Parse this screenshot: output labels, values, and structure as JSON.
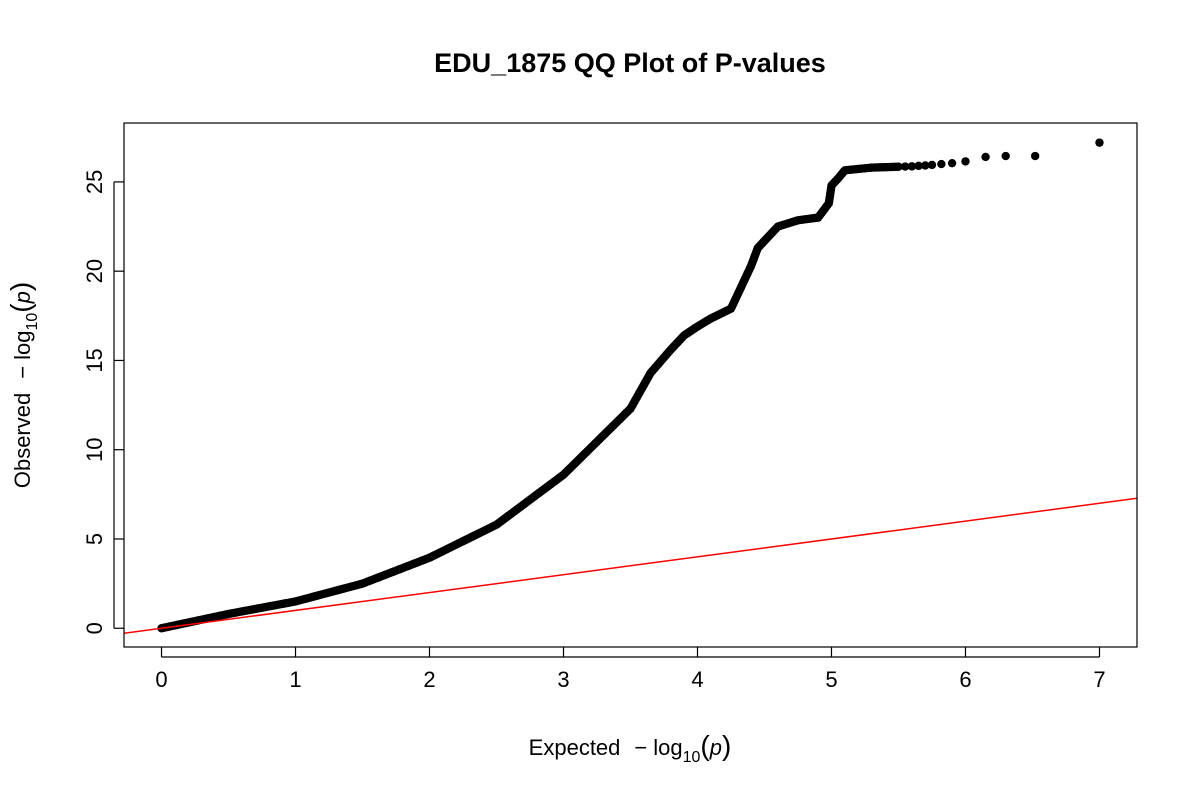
{
  "chart_data": {
    "type": "scatter",
    "title": "EDU_1875 QQ Plot of P-values",
    "xlabel_prefix": "Expected",
    "ylabel_prefix": "Observed",
    "log_label": {
      "minus": "−",
      "log": "log",
      "sub": "10",
      "open": "(",
      "var": "p",
      "close": ")"
    },
    "xlim": [
      -0.28,
      7.28
    ],
    "ylim": [
      -1.05,
      28.3
    ],
    "x_ticks": [
      0,
      1,
      2,
      3,
      4,
      5,
      6,
      7
    ],
    "y_ticks": [
      0,
      5,
      10,
      15,
      20,
      25
    ],
    "x_tick_labels": [
      "0",
      "1",
      "2",
      "3",
      "4",
      "5",
      "6",
      "7"
    ],
    "y_tick_labels": [
      "0",
      "5",
      "10",
      "15",
      "20",
      "25"
    ],
    "grid": false,
    "point_color": "#000000",
    "reference_line": {
      "slope": 1,
      "intercept": 0,
      "color": "#ff0000"
    },
    "series": [
      {
        "curve": [
          [
            0.0,
            0.0
          ],
          [
            0.5,
            0.8
          ],
          [
            1.0,
            1.5
          ],
          [
            1.5,
            2.5
          ],
          [
            2.0,
            3.95
          ],
          [
            2.5,
            5.8
          ],
          [
            3.0,
            8.6
          ],
          [
            3.5,
            12.3
          ],
          [
            3.65,
            14.3
          ],
          [
            3.8,
            15.6
          ],
          [
            3.9,
            16.4
          ],
          [
            4.0,
            16.9
          ],
          [
            4.1,
            17.35
          ],
          [
            4.25,
            17.9
          ],
          [
            4.3,
            18.7
          ],
          [
            4.4,
            20.3
          ],
          [
            4.45,
            21.3
          ],
          [
            4.6,
            22.5
          ],
          [
            4.75,
            22.85
          ],
          [
            4.9,
            23.0
          ],
          [
            4.98,
            23.8
          ],
          [
            5.0,
            24.8
          ],
          [
            5.05,
            25.2
          ],
          [
            5.1,
            25.65
          ],
          [
            5.3,
            25.8
          ],
          [
            5.5,
            25.85
          ]
        ],
        "tail_points": [
          [
            5.5,
            25.85
          ],
          [
            5.55,
            25.86
          ],
          [
            5.6,
            25.87
          ],
          [
            5.65,
            25.9
          ],
          [
            5.7,
            25.92
          ],
          [
            5.75,
            25.95
          ],
          [
            5.82,
            26.0
          ],
          [
            5.9,
            26.05
          ],
          [
            6.0,
            26.15
          ],
          [
            6.15,
            26.4
          ],
          [
            6.3,
            26.45
          ],
          [
            6.52,
            26.45
          ],
          [
            7.0,
            27.2
          ]
        ]
      }
    ]
  }
}
